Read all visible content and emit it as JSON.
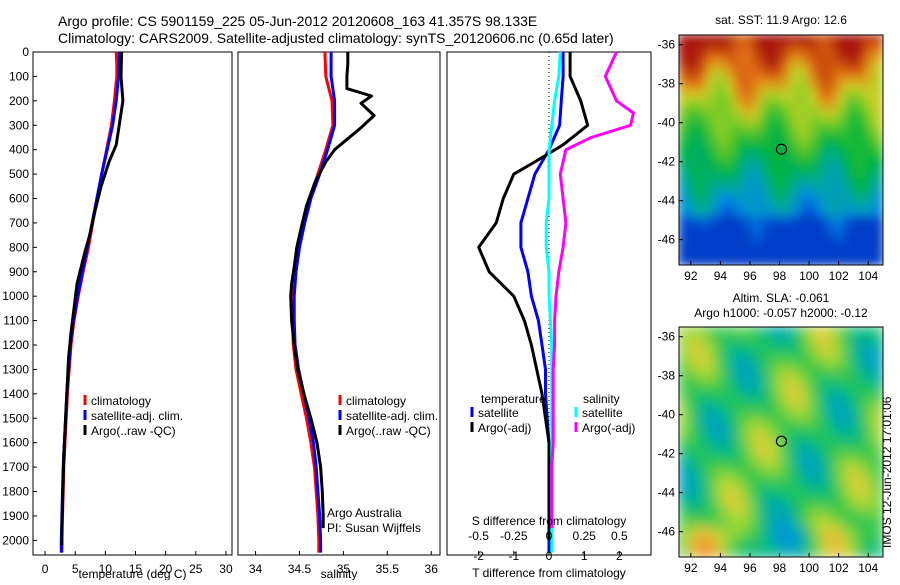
{
  "title": {
    "line1": "Argo profile: CS 5901159_225 05-Jun-2012 20120608_163 41.357S 98.133E",
    "line2": "Climatology: CARS2009. Satellite-adjusted climatology: synTS_20120606.nc (0.65d later)"
  },
  "colors": {
    "climatology": "#ff0000",
    "satellite": "#0000ff",
    "argo": "#000000",
    "sal_satellite": "#00ffff",
    "sal_argo": "#ff00ff"
  },
  "chart_data": [
    {
      "type": "line",
      "panel": "temperature",
      "xlabel": "temperature (deg C)",
      "xlim": [
        -2,
        31
      ],
      "xticks": [
        "0",
        "5",
        "10",
        "15",
        "20",
        "25",
        "30"
      ],
      "ylim": [
        0,
        2060
      ],
      "yticks": [
        "0",
        "100",
        "200",
        "300",
        "400",
        "500",
        "600",
        "700",
        "800",
        "900",
        "1000",
        "1100",
        "1200",
        "1300",
        "1400",
        "1500",
        "1600",
        "1700",
        "1800",
        "1900",
        "2000"
      ],
      "legend": [
        "climatology",
        "satellite-adj. clim.",
        "Argo(..raw -QC)"
      ],
      "series": [
        {
          "name": "climatology",
          "color_key": "climatology",
          "points": [
            [
              11.8,
              0
            ],
            [
              11.9,
              50
            ],
            [
              11.9,
              100
            ],
            [
              11.5,
              200
            ],
            [
              11.0,
              300
            ],
            [
              10.2,
              400
            ],
            [
              9.4,
              500
            ],
            [
              8.6,
              600
            ],
            [
              7.9,
              700
            ],
            [
              7.2,
              800
            ],
            [
              6.3,
              900
            ],
            [
              5.5,
              1000
            ],
            [
              4.8,
              1100
            ],
            [
              4.3,
              1200
            ],
            [
              4.0,
              1300
            ],
            [
              3.7,
              1400
            ],
            [
              3.5,
              1500
            ],
            [
              3.3,
              1600
            ],
            [
              3.1,
              1700
            ],
            [
              3.0,
              1800
            ],
            [
              2.9,
              1900
            ],
            [
              2.8,
              2000
            ],
            [
              2.8,
              2050
            ]
          ]
        },
        {
          "name": "satellite-adj. clim.",
          "color_key": "satellite",
          "points": [
            [
              12.3,
              0
            ],
            [
              12.3,
              50
            ],
            [
              12.2,
              100
            ],
            [
              11.8,
              200
            ],
            [
              11.2,
              300
            ],
            [
              10.3,
              400
            ],
            [
              9.4,
              500
            ],
            [
              8.6,
              600
            ],
            [
              7.8,
              700
            ],
            [
              7.0,
              800
            ],
            [
              6.2,
              900
            ],
            [
              5.4,
              1000
            ],
            [
              4.7,
              1100
            ],
            [
              4.2,
              1200
            ],
            [
              3.9,
              1300
            ],
            [
              3.6,
              1400
            ],
            [
              3.4,
              1500
            ],
            [
              3.2,
              1600
            ],
            [
              3.0,
              1700
            ],
            [
              2.9,
              1800
            ],
            [
              2.8,
              1900
            ],
            [
              2.7,
              2000
            ],
            [
              2.7,
              2050
            ]
          ]
        },
        {
          "name": "Argo(..raw -QC)",
          "color_key": "argo",
          "points": [
            [
              12.7,
              0
            ],
            [
              12.6,
              100
            ],
            [
              12.9,
              200
            ],
            [
              12.3,
              300
            ],
            [
              11.8,
              380
            ],
            [
              10.6,
              450
            ],
            [
              9.3,
              550
            ],
            [
              8.3,
              650
            ],
            [
              7.4,
              750
            ],
            [
              6.6,
              820
            ],
            [
              5.8,
              900
            ],
            [
              5.3,
              950
            ],
            [
              4.8,
              1050
            ],
            [
              4.3,
              1150
            ],
            [
              3.9,
              1250
            ],
            [
              3.7,
              1350
            ],
            [
              3.5,
              1450
            ],
            [
              3.3,
              1550
            ],
            [
              3.1,
              1650
            ],
            [
              3.0,
              1750
            ],
            [
              2.9,
              1850
            ],
            [
              2.8,
              1950
            ],
            [
              2.8,
              2020
            ]
          ]
        }
      ]
    },
    {
      "type": "line",
      "panel": "salinity",
      "xlabel": "salinity",
      "xlim": [
        33.8,
        36.1
      ],
      "xticks": [
        "34",
        "34.5",
        "35",
        "35.5",
        "36"
      ],
      "ylim": [
        0,
        2060
      ],
      "legend": [
        "climatology",
        "satellite-adj. clim.",
        "Argo(..raw -QC)"
      ],
      "annotation": [
        "Argo Australia",
        "PI: Susan Wijffels"
      ],
      "series": [
        {
          "name": "climatology",
          "color_key": "climatology",
          "points": [
            [
              34.79,
              0
            ],
            [
              34.8,
              100
            ],
            [
              34.87,
              200
            ],
            [
              34.88,
              300
            ],
            [
              34.8,
              400
            ],
            [
              34.71,
              500
            ],
            [
              34.62,
              600
            ],
            [
              34.55,
              700
            ],
            [
              34.49,
              800
            ],
            [
              34.45,
              900
            ],
            [
              34.42,
              1000
            ],
            [
              34.42,
              1100
            ],
            [
              34.43,
              1200
            ],
            [
              34.46,
              1300
            ],
            [
              34.52,
              1400
            ],
            [
              34.58,
              1500
            ],
            [
              34.63,
              1600
            ],
            [
              34.67,
              1700
            ],
            [
              34.69,
              1800
            ],
            [
              34.71,
              1900
            ],
            [
              34.72,
              2000
            ],
            [
              34.72,
              2050
            ]
          ]
        },
        {
          "name": "satellite-adj. clim.",
          "color_key": "satellite",
          "points": [
            [
              34.86,
              0
            ],
            [
              34.86,
              100
            ],
            [
              34.9,
              200
            ],
            [
              34.9,
              300
            ],
            [
              34.82,
              400
            ],
            [
              34.73,
              500
            ],
            [
              34.63,
              600
            ],
            [
              34.56,
              700
            ],
            [
              34.5,
              800
            ],
            [
              34.46,
              900
            ],
            [
              34.44,
              1000
            ],
            [
              34.44,
              1100
            ],
            [
              34.45,
              1200
            ],
            [
              34.49,
              1300
            ],
            [
              34.55,
              1400
            ],
            [
              34.61,
              1500
            ],
            [
              34.66,
              1600
            ],
            [
              34.69,
              1700
            ],
            [
              34.71,
              1800
            ],
            [
              34.73,
              1900
            ],
            [
              34.74,
              2000
            ],
            [
              34.74,
              2050
            ]
          ]
        },
        {
          "name": "Argo(..raw -QC)",
          "color_key": "argo",
          "points": [
            [
              35.05,
              0
            ],
            [
              35.05,
              50
            ],
            [
              35.04,
              100
            ],
            [
              35.04,
              150
            ],
            [
              35.32,
              180
            ],
            [
              35.2,
              210
            ],
            [
              35.35,
              260
            ],
            [
              35.2,
              310
            ],
            [
              34.9,
              400
            ],
            [
              34.8,
              450
            ],
            [
              34.68,
              530
            ],
            [
              34.58,
              630
            ],
            [
              34.52,
              720
            ],
            [
              34.47,
              800
            ],
            [
              34.44,
              880
            ],
            [
              34.41,
              950
            ],
            [
              34.4,
              1000
            ],
            [
              34.41,
              1100
            ],
            [
              34.44,
              1200
            ],
            [
              34.48,
              1300
            ],
            [
              34.55,
              1400
            ],
            [
              34.63,
              1500
            ],
            [
              34.7,
              1600
            ],
            [
              34.74,
              1700
            ],
            [
              34.76,
              1800
            ],
            [
              34.77,
              1900
            ],
            [
              34.77,
              1950
            ]
          ]
        }
      ]
    },
    {
      "type": "line",
      "panel": "difference",
      "xlabel_bottom": "T difference from climatology",
      "xlabel_top": "S difference from climatology",
      "xticks_T": [
        "-2",
        "-1",
        "0",
        "1",
        "2"
      ],
      "xticks_S": [
        "-0.5",
        "-0.25",
        "0",
        "0.25",
        "0.5"
      ],
      "xlim_T": [
        -2.9,
        2.9
      ],
      "xlim_S": [
        -0.725,
        0.725
      ],
      "ylim": [
        0,
        2060
      ],
      "legend_temperature": {
        "title": "temperature",
        "items": [
          "satellite",
          "Argo(-adj)"
        ]
      },
      "legend_salinity": {
        "title": "salinity",
        "items": [
          "satellite",
          "Argo(-adj)"
        ]
      },
      "series": [
        {
          "name": "temperature satellite",
          "axis": "T",
          "color_key": "satellite",
          "points": [
            [
              0.4,
              0
            ],
            [
              0.4,
              100
            ],
            [
              0.35,
              200
            ],
            [
              0.3,
              300
            ],
            [
              0.15,
              350
            ],
            [
              0.0,
              400
            ],
            [
              -0.4,
              500
            ],
            [
              -0.6,
              600
            ],
            [
              -0.8,
              700
            ],
            [
              -0.8,
              800
            ],
            [
              -0.7,
              850
            ],
            [
              -0.6,
              900
            ],
            [
              -0.5,
              1000
            ],
            [
              -0.3,
              1100
            ],
            [
              -0.2,
              1200
            ],
            [
              -0.1,
              1300
            ],
            [
              -0.1,
              1400
            ],
            [
              -0.05,
              1500
            ],
            [
              0.0,
              1600
            ],
            [
              0.0,
              1800
            ],
            [
              0.0,
              2050
            ]
          ]
        },
        {
          "name": "temperature Argo(-adj)",
          "axis": "T",
          "color_key": "argo",
          "points": [
            [
              0.6,
              0
            ],
            [
              0.6,
              100
            ],
            [
              0.9,
              200
            ],
            [
              1.1,
              300
            ],
            [
              0.4,
              380
            ],
            [
              -0.4,
              450
            ],
            [
              -1.0,
              500
            ],
            [
              -1.3,
              600
            ],
            [
              -1.5,
              700
            ],
            [
              -2.0,
              800
            ],
            [
              -1.7,
              900
            ],
            [
              -1.0,
              1000
            ],
            [
              -0.7,
              1100
            ],
            [
              -0.5,
              1200
            ],
            [
              -0.35,
              1300
            ],
            [
              -0.2,
              1400
            ],
            [
              -0.1,
              1500
            ],
            [
              0.0,
              1600
            ],
            [
              0.0,
              2000
            ]
          ]
        },
        {
          "name": "salinity satellite",
          "axis": "S",
          "color_key": "sal_satellite",
          "points": [
            [
              0.08,
              0
            ],
            [
              0.07,
              100
            ],
            [
              0.04,
              200
            ],
            [
              0.02,
              300
            ],
            [
              0.0,
              400
            ],
            [
              0.0,
              600
            ],
            [
              -0.02,
              700
            ],
            [
              -0.02,
              800
            ],
            [
              0.0,
              900
            ],
            [
              0.0,
              1000
            ],
            [
              0.02,
              1200
            ],
            [
              0.02,
              1400
            ],
            [
              0.02,
              1600
            ],
            [
              0.02,
              1800
            ],
            [
              0.02,
              2050
            ]
          ]
        },
        {
          "name": "salinity Argo(-adj)",
          "axis": "S",
          "color_key": "sal_argo",
          "points": [
            [
              0.48,
              0
            ],
            [
              0.44,
              50
            ],
            [
              0.4,
              100
            ],
            [
              0.48,
              200
            ],
            [
              0.6,
              250
            ],
            [
              0.58,
              300
            ],
            [
              0.3,
              350
            ],
            [
              0.12,
              400
            ],
            [
              0.08,
              500
            ],
            [
              0.1,
              600
            ],
            [
              0.12,
              700
            ],
            [
              0.1,
              800
            ],
            [
              0.07,
              900
            ],
            [
              0.05,
              1000
            ],
            [
              0.04,
              1100
            ],
            [
              0.04,
              1200
            ],
            [
              0.03,
              1300
            ],
            [
              0.03,
              1400
            ],
            [
              0.03,
              1500
            ],
            [
              0.03,
              1600
            ],
            [
              0.02,
              1700
            ],
            [
              0.02,
              1800
            ],
            [
              0.02,
              1950
            ]
          ]
        }
      ]
    },
    {
      "type": "heatmap",
      "panel": "sst_map",
      "title": "sat. SST: 11.9 Argo: 12.6",
      "xticks": [
        "92",
        "94",
        "96",
        "98",
        "100",
        "102",
        "104"
      ],
      "yticks": [
        "-36",
        "-38",
        "-40",
        "-42",
        "-44",
        "-46"
      ],
      "xlim": [
        91.2,
        105.0
      ],
      "ylim": [
        -47.3,
        -35.5
      ],
      "marker": [
        98.13,
        -41.36
      ]
    },
    {
      "type": "heatmap",
      "panel": "sla_map",
      "title_line1": "Altim. SLA: -0.061",
      "title_line2": "Argo h1000: -0.057 h2000: -0.12",
      "xticks": [
        "92",
        "94",
        "96",
        "98",
        "100",
        "102",
        "104"
      ],
      "yticks": [
        "-36",
        "-38",
        "-40",
        "-42",
        "-44",
        "-46"
      ],
      "xlim": [
        91.2,
        105.0
      ],
      "ylim": [
        -47.3,
        -35.5
      ],
      "marker": [
        98.13,
        -41.36
      ]
    }
  ],
  "side_label": "IMOS 12-Jun-2012 17:01:06"
}
